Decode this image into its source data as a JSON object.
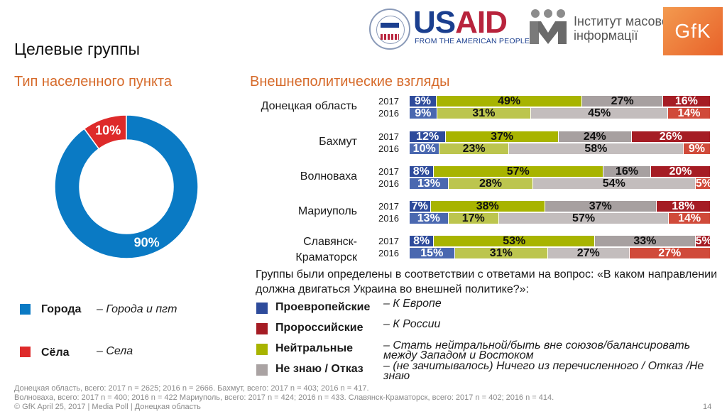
{
  "header": {
    "title": "Целевые группы",
    "logos": {
      "usaid_word_us": "US",
      "usaid_word_aid": "AID",
      "usaid_tagline": "FROM THE AMERICAN PEOPLE",
      "imi_line1": "Інститут масової",
      "imi_line2": "інформації",
      "gfk": "GfK"
    }
  },
  "left_panel": {
    "subtitle": "Тип населенного пункта",
    "legend": [
      {
        "name": "Города",
        "desc": "– Города и пгт",
        "color": "#0a7ac4"
      },
      {
        "name": "Сёла",
        "desc": "– Села",
        "color": "#de2a2a"
      }
    ]
  },
  "right_panel": {
    "subtitle": "Внешнеполитические взгляды",
    "note": "Группы были определены в соответствии с ответами на вопрос: «В каком направлении должна двигаться Украина во внешней политике?»:",
    "legend": [
      {
        "name": "Проевропейские",
        "desc": "– К Европе",
        "color": "#2e4b9b"
      },
      {
        "name": "Пророссийские",
        "desc": "– К России",
        "color": "#a51c24"
      },
      {
        "name": "Нейтральные",
        "desc": "– Стать нейтральной/быть вне союзов/балансировать между Западом и Востоком",
        "color": "#a8b400"
      },
      {
        "name": "Не знаю / Отказ",
        "desc": "– (не зачитывалось) Ничего из перечисленного / Отказ /Не знаю",
        "color": "#aaa3a3"
      }
    ]
  },
  "chart_data": [
    {
      "type": "pie",
      "title": "Тип населенного пункта",
      "categories": [
        "Города",
        "Сёла"
      ],
      "values": [
        90,
        10
      ],
      "labels": [
        "90%",
        "10%"
      ],
      "colors": [
        "#0a7ac4",
        "#de2a2a"
      ],
      "donut": true
    },
    {
      "type": "bar",
      "orientation": "horizontal",
      "stacked": true,
      "title": "Внешнеполитические взгляды",
      "series_names": [
        "Проевропейские",
        "Нейтральные",
        "Не знаю / Отказ",
        "Пророссийские"
      ],
      "colors_2017": [
        "#2e4b9b",
        "#a8b400",
        "#a7a0a0",
        "#a51c24"
      ],
      "colors_2016": [
        "#4a68b0",
        "#bcc54e",
        "#c3bdbd",
        "#d04a3a"
      ],
      "label_colors": [
        "#ffffff",
        "#111111",
        "#111111",
        "#ffffff"
      ],
      "groups": [
        {
          "region": "Донецкая область",
          "rows": [
            {
              "year": "2017",
              "values": [
                9,
                49,
                27,
                16
              ]
            },
            {
              "year": "2016",
              "values": [
                9,
                31,
                45,
                14
              ]
            }
          ]
        },
        {
          "region": "Бахмут",
          "rows": [
            {
              "year": "2017",
              "values": [
                12,
                37,
                24,
                26
              ]
            },
            {
              "year": "2016",
              "values": [
                10,
                23,
                58,
                9
              ]
            }
          ]
        },
        {
          "region": "Волноваха",
          "rows": [
            {
              "year": "2017",
              "values": [
                8,
                57,
                16,
                20
              ]
            },
            {
              "year": "2016",
              "values": [
                13,
                28,
                54,
                5
              ]
            }
          ]
        },
        {
          "region": "Мариуполь",
          "rows": [
            {
              "year": "2017",
              "values": [
                7,
                38,
                37,
                18
              ]
            },
            {
              "year": "2016",
              "values": [
                13,
                17,
                57,
                14
              ]
            }
          ]
        },
        {
          "region": "Славянск-Краматорск",
          "rows": [
            {
              "year": "2017",
              "values": [
                8,
                53,
                33,
                5
              ]
            },
            {
              "year": "2016",
              "values": [
                15,
                31,
                27,
                27
              ]
            }
          ]
        }
      ]
    }
  ],
  "footer": {
    "line1": "Донецкая область, всего: 2017 n = 2625; 2016 n = 2666. Бахмут, всего: 2017 n = 403; 2016 n = 417.",
    "line2": "Волноваха, всего: 2017 n = 400; 2016 n = 422  Мариуполь, всего: 2017 n = 424; 2016 n = 433. Славянск-Краматорск, всего: 2017 n = 402; 2016 n = 414.",
    "line3": "© GfK April 25, 2017 | Media Poll | Донецкая область",
    "page": "14"
  }
}
